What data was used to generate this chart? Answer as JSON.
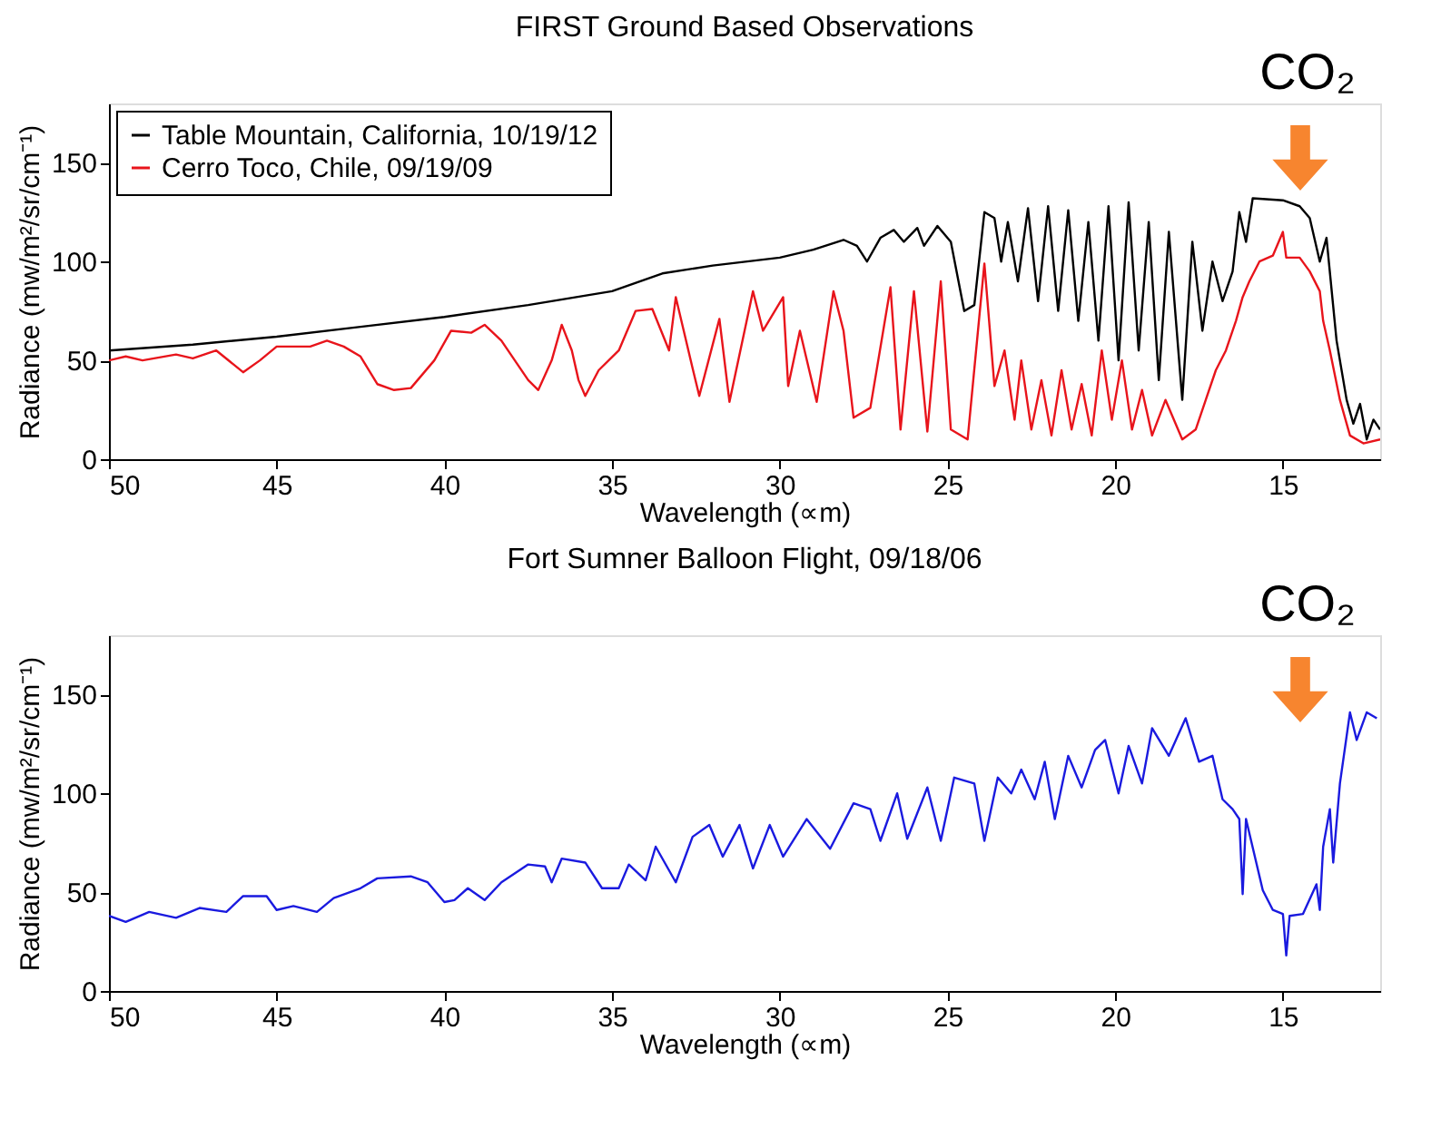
{
  "chart_data": [
    {
      "type": "line",
      "title": "FIRST Ground Based Observations",
      "xlabel": "Wavelength (∝m)",
      "ylabel": "Radiance (mw/m²/sr/cm⁻¹)",
      "xlim": [
        50,
        12.1
      ],
      "xticks": [
        50,
        45,
        40,
        35,
        30,
        25,
        20,
        15
      ],
      "ylim": [
        0,
        180
      ],
      "yticks": [
        0,
        50,
        100,
        150
      ],
      "legend": "top left",
      "annotations": [
        "CO₂"
      ],
      "series": [
        {
          "name": "Table Mountain, California, 10/19/12",
          "color": "#000000",
          "x": [
            50,
            47.5,
            45,
            42.5,
            40,
            37.5,
            35,
            33.5,
            32,
            30,
            29,
            28.1,
            27.7,
            27.4,
            27.0,
            26.6,
            26.3,
            25.9,
            25.7,
            25.3,
            24.9,
            24.5,
            24.2,
            23.9,
            23.6,
            23.4,
            23.2,
            22.9,
            22.6,
            22.3,
            22.0,
            21.7,
            21.4,
            21.1,
            20.8,
            20.5,
            20.2,
            19.9,
            19.6,
            19.3,
            19.0,
            18.7,
            18.4,
            18.0,
            17.7,
            17.4,
            17.1,
            16.8,
            16.5,
            16.3,
            16.1,
            15.9,
            15.0,
            14.5,
            14.2,
            13.9,
            13.7,
            13.4,
            13.1,
            12.9,
            12.7,
            12.5,
            12.3,
            12.1
          ],
          "values": [
            55,
            58,
            62,
            67,
            72,
            78,
            85,
            94,
            98,
            102,
            106,
            111,
            108,
            100,
            112,
            116,
            110,
            117,
            108,
            118,
            110,
            75,
            78,
            125,
            122,
            100,
            120,
            90,
            127,
            80,
            128,
            75,
            126,
            70,
            120,
            60,
            128,
            50,
            130,
            55,
            120,
            40,
            115,
            30,
            110,
            65,
            100,
            80,
            95,
            125,
            110,
            132,
            131,
            128,
            122,
            100,
            112,
            60,
            30,
            18,
            28,
            10,
            20,
            15
          ]
        },
        {
          "name": "Cerro Toco, Chile, 09/19/09",
          "color": "#e8141b",
          "x": [
            50,
            49.5,
            49,
            48,
            47.5,
            46.8,
            46,
            45.5,
            45,
            44,
            43.5,
            43,
            42.5,
            42,
            41.5,
            41,
            40.3,
            39.8,
            39.2,
            38.8,
            38.3,
            37.5,
            37.2,
            36.8,
            36.5,
            36.2,
            36,
            35.8,
            35.4,
            34.8,
            34.3,
            33.8,
            33.3,
            33.1,
            32.6,
            32.4,
            31.8,
            31.5,
            30.8,
            30.5,
            29.9,
            29.75,
            29.4,
            28.9,
            28.4,
            28.1,
            27.8,
            27.3,
            26.7,
            26.4,
            26.0,
            25.6,
            25.2,
            24.9,
            24.4,
            23.9,
            23.6,
            23.3,
            23.0,
            22.8,
            22.5,
            22.2,
            21.9,
            21.6,
            21.3,
            21.0,
            20.7,
            20.4,
            20.1,
            19.8,
            19.5,
            19.2,
            18.9,
            18.5,
            18.0,
            17.6,
            17.3,
            17.0,
            16.7,
            16.4,
            16.2,
            16.0,
            15.7,
            15.3,
            15.0,
            14.9,
            14.5,
            14.2,
            13.9,
            13.8,
            13.6,
            13.3,
            13.0,
            12.6,
            12.1
          ],
          "values": [
            50,
            52,
            50,
            53,
            51,
            55,
            44,
            50,
            57,
            57,
            60,
            57,
            52,
            38,
            35,
            36,
            50,
            65,
            64,
            68,
            60,
            40,
            35,
            50,
            68,
            55,
            40,
            32,
            45,
            55,
            75,
            76,
            55,
            82,
            46,
            32,
            71,
            29,
            85,
            65,
            82,
            37,
            65,
            29,
            85,
            65,
            21,
            26,
            87,
            15,
            85,
            14,
            90,
            15,
            10,
            99,
            37,
            55,
            20,
            50,
            15,
            40,
            12,
            45,
            15,
            38,
            12,
            55,
            20,
            50,
            15,
            35,
            12,
            30,
            10,
            15,
            30,
            45,
            55,
            70,
            82,
            90,
            100,
            103,
            115,
            102,
            102,
            95,
            85,
            70,
            55,
            30,
            12,
            8,
            10
          ]
        }
      ]
    },
    {
      "type": "line",
      "title": "Fort Sumner Balloon Flight, 09/18/06",
      "xlabel": "Wavelength (∝m)",
      "ylabel": "Radiance (mw/m²/sr/cm⁻¹)",
      "xlim": [
        50,
        12.1
      ],
      "xticks": [
        50,
        45,
        40,
        35,
        30,
        25,
        20,
        15
      ],
      "ylim": [
        0,
        180
      ],
      "yticks": [
        0,
        50,
        100,
        150
      ],
      "annotations": [
        "CO₂"
      ],
      "series": [
        {
          "color": "#1a1adf",
          "x": [
            50,
            49.5,
            48.8,
            48,
            47.3,
            46.5,
            46,
            45.3,
            45,
            44.5,
            43.8,
            43.3,
            42.5,
            42,
            41,
            40.5,
            40,
            39.7,
            39.3,
            38.8,
            38.3,
            37.5,
            37,
            36.8,
            36.5,
            35.8,
            35.3,
            34.8,
            34.5,
            34,
            33.7,
            33.1,
            32.6,
            32.1,
            31.7,
            31.2,
            30.8,
            30.3,
            29.9,
            29.2,
            28.5,
            27.8,
            27.3,
            27.0,
            26.5,
            26.2,
            25.6,
            25.2,
            24.8,
            24.2,
            23.9,
            23.5,
            23.1,
            22.8,
            22.4,
            22.1,
            21.8,
            21.4,
            21.0,
            20.6,
            20.3,
            19.9,
            19.6,
            19.2,
            18.9,
            18.4,
            17.9,
            17.5,
            17.1,
            16.8,
            16.5,
            16.3,
            16.2,
            16.1,
            15.6,
            15.3,
            15.0,
            14.9,
            14.8,
            14.4,
            14.0,
            13.9,
            13.8,
            13.6,
            13.5,
            13.3,
            13.0,
            12.8,
            12.5,
            12.2
          ],
          "values": [
            38,
            35,
            40,
            37,
            42,
            40,
            48,
            48,
            41,
            43,
            40,
            47,
            52,
            57,
            58,
            55,
            45,
            46,
            52,
            46,
            55,
            64,
            63,
            55,
            67,
            65,
            52,
            52,
            64,
            56,
            73,
            55,
            78,
            84,
            68,
            84,
            62,
            84,
            68,
            87,
            72,
            95,
            92,
            76,
            100,
            77,
            103,
            76,
            108,
            105,
            76,
            108,
            100,
            112,
            97,
            116,
            87,
            119,
            103,
            122,
            127,
            100,
            124,
            105,
            133,
            119,
            138,
            116,
            119,
            97,
            92,
            87,
            49,
            87,
            51,
            41,
            39,
            18,
            38,
            39,
            54,
            41,
            73,
            92,
            65,
            105,
            141,
            127,
            141,
            138
          ]
        }
      ]
    }
  ]
}
